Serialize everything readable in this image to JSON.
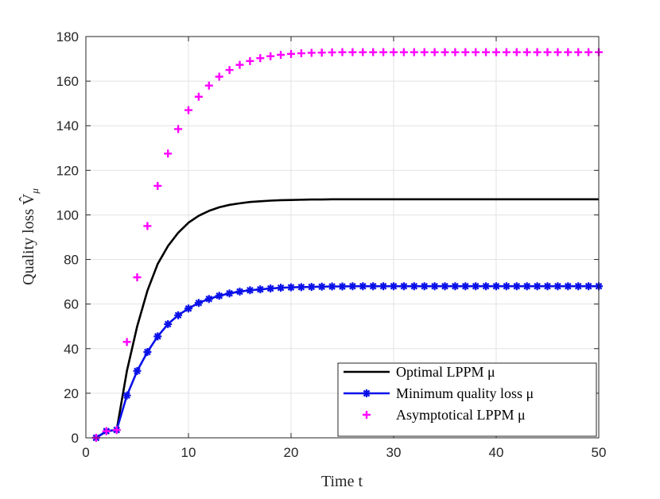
{
  "chart_data": {
    "type": "line",
    "xlabel": "Time t",
    "ylabel": "Quality loss V̂",
    "ylabel_subscript": "μ",
    "xlim": [
      0,
      50
    ],
    "ylim": [
      0,
      180
    ],
    "xticks": [
      0,
      10,
      20,
      30,
      40,
      50
    ],
    "yticks": [
      0,
      20,
      40,
      60,
      80,
      100,
      120,
      140,
      160,
      180
    ],
    "grid": true,
    "legend_position": "bottom-right",
    "series": [
      {
        "name": "Optimal LPPM μ",
        "style": "line",
        "color": "#000000",
        "x": [
          1,
          2,
          3,
          4,
          5,
          6,
          7,
          8,
          9,
          10,
          11,
          12,
          13,
          14,
          15,
          16,
          17,
          18,
          19,
          20,
          21,
          22,
          23,
          24,
          25,
          26,
          27,
          28,
          29,
          30,
          31,
          32,
          33,
          34,
          35,
          36,
          37,
          38,
          39,
          40,
          41,
          42,
          43,
          44,
          45,
          46,
          47,
          48,
          49,
          50
        ],
        "y": [
          0,
          3,
          3.5,
          30,
          50,
          66,
          78,
          86,
          92,
          96.5,
          99.6,
          101.8,
          103.4,
          104.5,
          105.2,
          105.8,
          106.1,
          106.4,
          106.6,
          106.7,
          106.8,
          106.9,
          106.9,
          107,
          107,
          107,
          107,
          107,
          107,
          107,
          107,
          107,
          107,
          107,
          107,
          107,
          107,
          107,
          107,
          107,
          107,
          107,
          107,
          107,
          107,
          107,
          107,
          107,
          107,
          107
        ]
      },
      {
        "name": "Minimum quality loss μ",
        "style": "line-marker",
        "marker": "asterisk",
        "color": "#0a10e8",
        "x": [
          1,
          2,
          3,
          4,
          5,
          6,
          7,
          8,
          9,
          10,
          11,
          12,
          13,
          14,
          15,
          16,
          17,
          18,
          19,
          20,
          21,
          22,
          23,
          24,
          25,
          26,
          27,
          28,
          29,
          30,
          31,
          32,
          33,
          34,
          35,
          36,
          37,
          38,
          39,
          40,
          41,
          42,
          43,
          44,
          45,
          46,
          47,
          48,
          49,
          50
        ],
        "y": [
          0,
          3,
          3.5,
          19,
          30,
          38.5,
          45.5,
          51,
          55,
          58,
          60.5,
          62.3,
          63.7,
          64.8,
          65.6,
          66.2,
          66.6,
          67,
          67.3,
          67.5,
          67.6,
          67.7,
          67.8,
          67.9,
          67.9,
          68,
          68,
          68,
          68,
          68,
          68,
          68,
          68,
          68,
          68,
          68,
          68,
          68,
          68,
          68,
          68,
          68,
          68,
          68,
          68,
          68,
          68,
          68,
          68,
          68
        ]
      },
      {
        "name": "Asymptotical LPPM μ",
        "style": "marker",
        "marker": "plus",
        "color": "#ff00ff",
        "x": [
          1,
          2,
          3,
          4,
          5,
          6,
          7,
          8,
          9,
          10,
          11,
          12,
          13,
          14,
          15,
          16,
          17,
          18,
          19,
          20,
          21,
          22,
          23,
          24,
          25,
          26,
          27,
          28,
          29,
          30,
          31,
          32,
          33,
          34,
          35,
          36,
          37,
          38,
          39,
          40,
          41,
          42,
          43,
          44,
          45,
          46,
          47,
          48,
          49,
          50
        ],
        "y": [
          0,
          3,
          3.5,
          43,
          72,
          95,
          113,
          127.5,
          138.5,
          147,
          153,
          158,
          162,
          165,
          167.3,
          169,
          170.3,
          171.2,
          171.8,
          172.2,
          172.5,
          172.7,
          172.8,
          172.9,
          173,
          173,
          173,
          173,
          173,
          173,
          173,
          173,
          173,
          173,
          173,
          173,
          173,
          173,
          173,
          173,
          173,
          173,
          173,
          173,
          173,
          173,
          173,
          173,
          173,
          173
        ]
      }
    ]
  }
}
